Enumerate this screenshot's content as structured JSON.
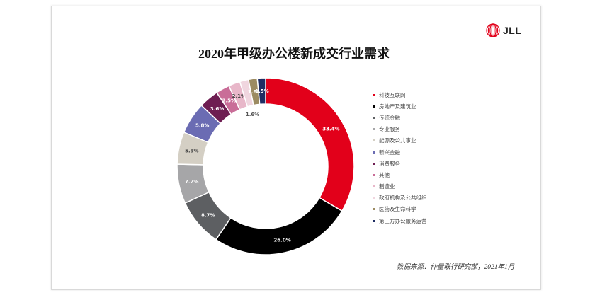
{
  "title": "2020年甲级办公楼新成交行业需求",
  "logo": {
    "text": "JLL"
  },
  "source": "数据来源：仲量联行研究部，2021年1月",
  "chart_data": {
    "type": "pie",
    "variant": "donut",
    "legend_position": "right",
    "categories": [
      "科技互联网",
      "房地产及建筑业",
      "传统金融",
      "专业服务",
      "能源及公共事业",
      "新兴金融",
      "消费服务",
      "其他",
      "制造业",
      "政府机构及公共组织",
      "医药及生命科学",
      "第三方办公服务运营"
    ],
    "values": [
      33.4,
      26.0,
      8.7,
      7.2,
      5.9,
      5.8,
      3.6,
      2.5,
      2.1,
      1.6,
      1.6,
      1.5
    ],
    "labels": [
      "33.4%",
      "26.0%",
      "8.7%",
      "7.2%",
      "5.9%",
      "5.8%",
      "3.6%",
      "2.5%",
      "2.1%",
      "1.6%",
      "1.6%",
      "1.5%"
    ],
    "colors": [
      "#e2001a",
      "#000000",
      "#5d5f62",
      "#a6a6a8",
      "#d4cfc4",
      "#6b6cb3",
      "#6e1d52",
      "#c96d98",
      "#e8b7c9",
      "#f0d6df",
      "#9c8b62",
      "#1f2d63"
    ]
  }
}
